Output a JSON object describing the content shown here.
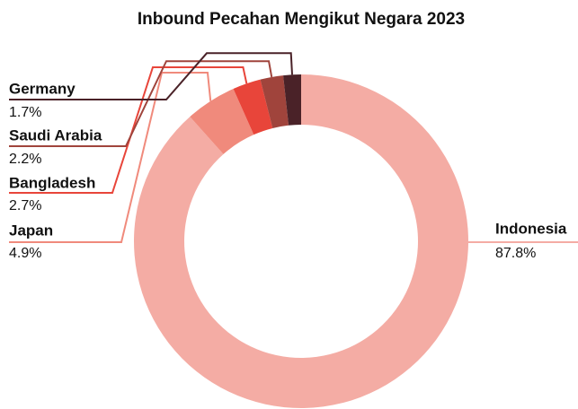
{
  "chart_data": {
    "type": "donut",
    "title": "Inbound Pecahan Mengikut Negara 2023",
    "categories": [
      "Indonesia",
      "Japan",
      "Bangladesh",
      "Saudi Arabia",
      "Germany"
    ],
    "values": [
      87.8,
      4.9,
      2.7,
      2.2,
      1.7
    ],
    "value_labels": [
      "87.8%",
      "4.9%",
      "2.7%",
      "2.2%",
      "1.7%"
    ],
    "colors": [
      "#f4aca4",
      "#f08a7c",
      "#e8453a",
      "#a0443c",
      "#4a2228"
    ]
  }
}
